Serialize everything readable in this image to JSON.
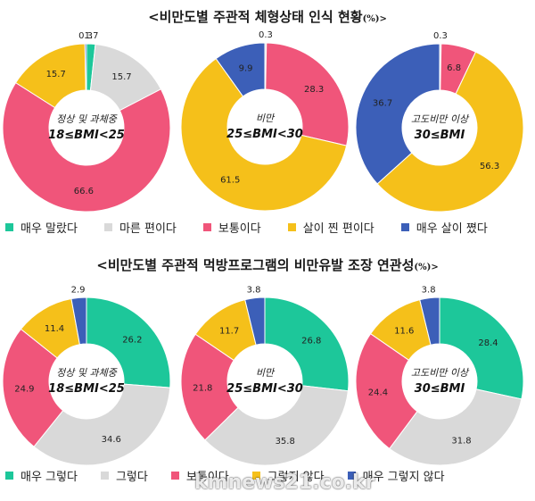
{
  "colors": [
    "#1dc79a",
    "#d9d9d9",
    "#f0557a",
    "#f5c01a",
    "#3c5fb8"
  ],
  "sections": [
    {
      "title": "<비만도별 주관적 체형상태 인식 현황",
      "title_unit": "(%)>",
      "legend": [
        "매우 말랐다",
        "마른 편이다",
        "보통이다",
        "살이 찐 편이다",
        "매우 살이 쪘다"
      ]
    },
    {
      "title": "<비만도별 주관적 먹방프로그램의 비만유발 조장 연관성",
      "title_unit": "(%)>",
      "legend": [
        "매우 그렇다",
        "그렇다",
        "보통이다",
        "그렇지 않다",
        "매우 그렇지 않다"
      ]
    }
  ],
  "watermark": "kmnews21.co.kr",
  "chart_data": [
    {
      "type": "pie",
      "donut": true,
      "section": 0,
      "center_label": [
        "정상 및 과체중",
        "18≤BMI<25"
      ],
      "categories": [
        "매우 말랐다",
        "마른 편이다",
        "보통이다",
        "살이 찐 편이다",
        "매우 살이 쪘다"
      ],
      "values": [
        1.7,
        15.7,
        66.6,
        15.7,
        0.3
      ]
    },
    {
      "type": "pie",
      "donut": true,
      "section": 0,
      "center_label": [
        "비만",
        "25≤BMI<30"
      ],
      "categories": [
        "매우 말랐다",
        "마른 편이다",
        "보통이다",
        "살이 찐 편이다",
        "매우 살이 쪘다"
      ],
      "values": [
        0,
        0.3,
        28.3,
        61.5,
        9.9
      ]
    },
    {
      "type": "pie",
      "donut": true,
      "section": 0,
      "center_label": [
        "고도비만 이상",
        "30≤BMI"
      ],
      "categories": [
        "매우 말랐다",
        "마른 편이다",
        "보통이다",
        "살이 찐 편이다",
        "매우 살이 쪘다"
      ],
      "values": [
        0,
        0.3,
        6.8,
        56.3,
        36.7
      ]
    },
    {
      "type": "pie",
      "donut": true,
      "section": 1,
      "center_label": [
        "정상 및 과체중",
        "18≤BMI<25"
      ],
      "categories": [
        "매우 그렇다",
        "그렇다",
        "보통이다",
        "그렇지 않다",
        "매우 그렇지 않다"
      ],
      "values": [
        26.2,
        34.6,
        24.9,
        11.4,
        2.9
      ]
    },
    {
      "type": "pie",
      "donut": true,
      "section": 1,
      "center_label": [
        "비만",
        "25≤BMI<30"
      ],
      "categories": [
        "매우 그렇다",
        "그렇다",
        "보통이다",
        "그렇지 않다",
        "매우 그렇지 않다"
      ],
      "values": [
        26.8,
        35.8,
        21.8,
        11.7,
        3.8
      ]
    },
    {
      "type": "pie",
      "donut": true,
      "section": 1,
      "center_label": [
        "고도비만 이상",
        "30≤BMI"
      ],
      "categories": [
        "매우 그렇다",
        "그렇다",
        "보통이다",
        "그렇지 않다",
        "매우 그렇지 않다"
      ],
      "values": [
        28.4,
        31.8,
        24.4,
        11.6,
        3.8
      ]
    }
  ]
}
